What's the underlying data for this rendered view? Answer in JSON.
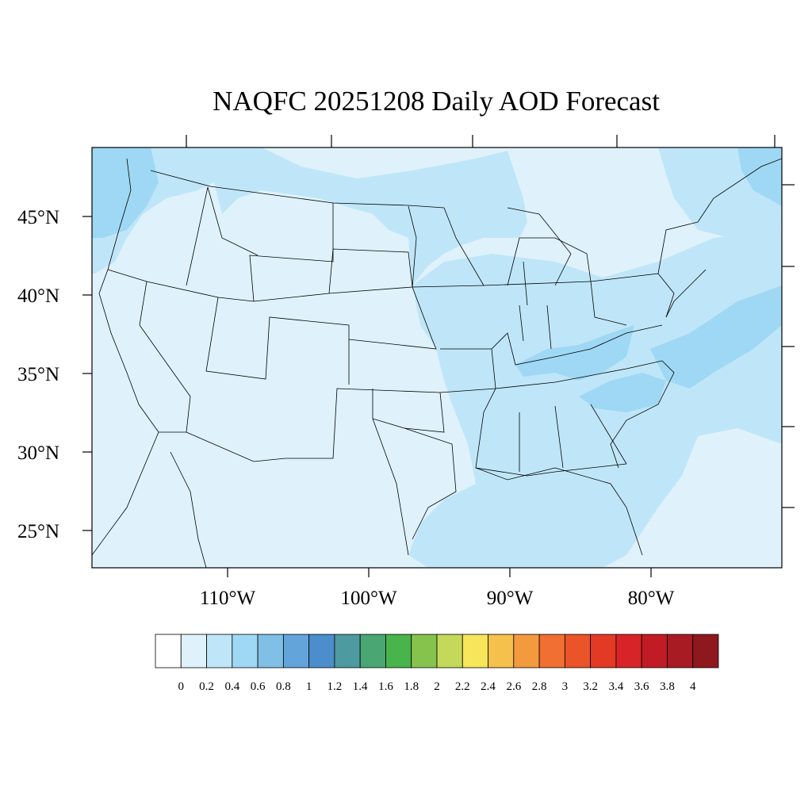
{
  "title": "NAQFC 20251208 Daily AOD Forecast",
  "map": {
    "lat_labels": [
      "45°N",
      "40°N",
      "35°N",
      "30°N",
      "25°N"
    ],
    "lon_labels": [
      "110°W",
      "100°W",
      "90°W",
      "80°W"
    ]
  },
  "colorbar": {
    "labels": [
      "0",
      "0.2",
      "0.4",
      "0.6",
      "0.8",
      "1",
      "1.2",
      "1.4",
      "1.6",
      "1.8",
      "2",
      "2.2",
      "2.4",
      "2.6",
      "2.8",
      "3",
      "3.2",
      "3.4",
      "3.6",
      "3.8",
      "4"
    ],
    "colors": [
      "#ffffff",
      "#dff2fb",
      "#bfe6f8",
      "#9fd8f4",
      "#80bfe6",
      "#63a5db",
      "#4b8ecb",
      "#4d9aa0",
      "#4aa672",
      "#48b44c",
      "#86c34d",
      "#c4d85a",
      "#f7e55a",
      "#f6c04c",
      "#f49a3e",
      "#f06f31",
      "#eb5329",
      "#e23a25",
      "#d82428",
      "#c11c25",
      "#a91b22",
      "#8e181d"
    ]
  },
  "colors": {
    "aod_0_2": "#dff2fb",
    "aod_0_4": "#bfe6f8",
    "aod_0_6": "#9fd8f4",
    "coastline": "#000000"
  }
}
